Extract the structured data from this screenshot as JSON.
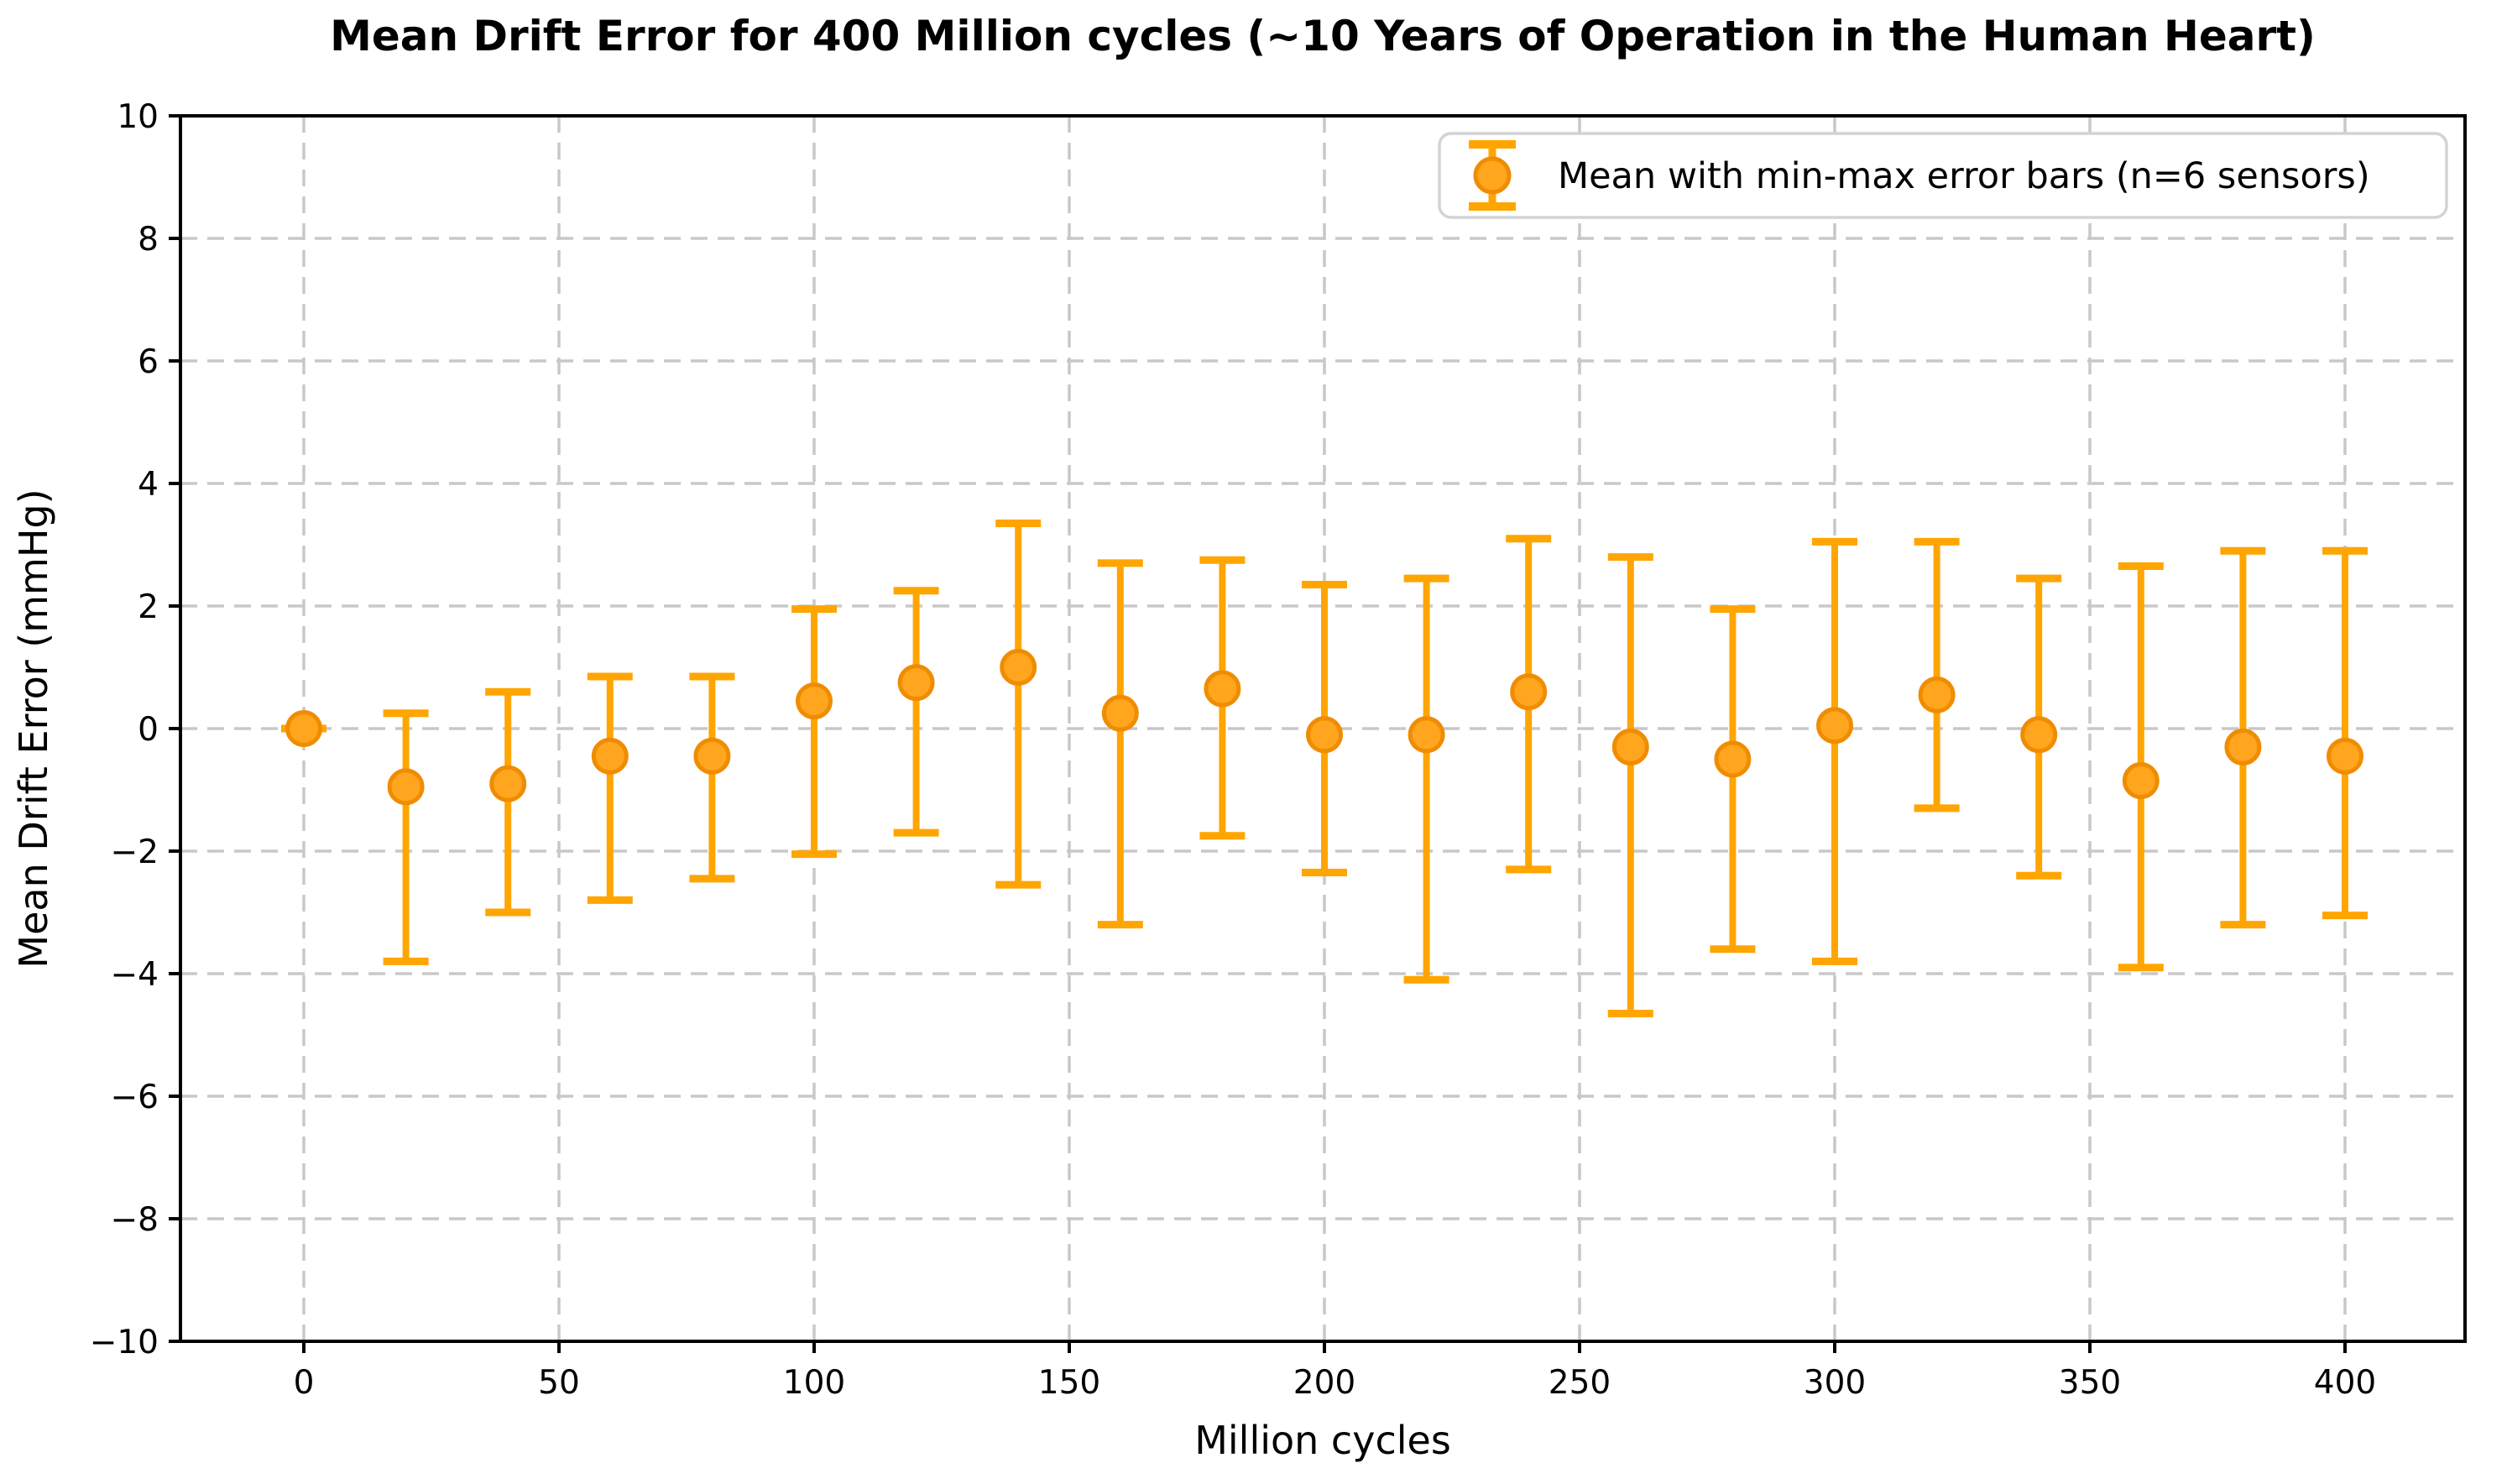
{
  "title": "Mean Drift Error for 400 Million cycles (~10 Years of Operation in the Human Heart)",
  "legend": {
    "label": "Mean with min-max error bars (n=6 sensors)",
    "position": "upper right"
  },
  "colors": {
    "errorbar_line": "#FFA500",
    "marker_fill": "#FFA51E",
    "marker_edge": "#F08C00",
    "grid": "#C8C8C8",
    "spine": "#000000",
    "text": "#000000",
    "legend_border": "#D3D3D3",
    "background": "#FFFFFF"
  },
  "chart_data": {
    "type": "scatter",
    "title": "Mean Drift Error for 400 Million cycles (~10 Years of Operation in the Human Heart)",
    "xlabel": "Million cycles",
    "ylabel": "Mean Drift Error (mmHg)",
    "legend_label": "Mean with min-max error bars (n=6 sensors)",
    "legend_position": "upper right",
    "grid": true,
    "xlim": [
      -24.2,
      423.6
    ],
    "ylim": [
      -10,
      10
    ],
    "x_tick_values": [
      0,
      50,
      100,
      150,
      200,
      250,
      300,
      350,
      400
    ],
    "x_tick_labels": [
      "0",
      "50",
      "100",
      "150",
      "200",
      "250",
      "300",
      "350",
      "400"
    ],
    "y_tick_values": [
      10,
      8,
      6,
      4,
      2,
      0,
      -2,
      -4,
      -6,
      -8,
      -10
    ],
    "y_tick_labels": [
      "10",
      "8",
      "6",
      "4",
      "2",
      "0",
      "−2",
      "−4",
      "−6",
      "−8",
      "−10"
    ],
    "x": [
      0,
      20,
      40,
      60,
      80,
      100,
      120,
      140,
      160,
      180,
      200,
      220,
      240,
      260,
      280,
      300,
      320,
      340,
      360,
      380,
      400
    ],
    "series": [
      {
        "name": "mean",
        "values": [
          0.0,
          -0.95,
          -0.9,
          -0.45,
          -0.45,
          0.45,
          0.75,
          1.0,
          0.25,
          0.65,
          -0.1,
          -0.1,
          0.6,
          -0.3,
          -0.5,
          0.05,
          0.55,
          -0.1,
          -0.85,
          -0.3,
          -0.45
        ]
      },
      {
        "name": "min",
        "values": [
          0.0,
          -3.8,
          -3.0,
          -2.8,
          -2.45,
          -2.05,
          -1.7,
          -2.55,
          -3.2,
          -1.75,
          -2.35,
          -4.1,
          -2.3,
          -4.65,
          -3.6,
          -3.8,
          -1.3,
          -2.4,
          -3.9,
          -3.2,
          -3.05
        ]
      },
      {
        "name": "max",
        "values": [
          0.0,
          0.25,
          0.6,
          0.85,
          0.85,
          1.95,
          2.25,
          3.35,
          2.7,
          2.75,
          2.35,
          2.45,
          3.1,
          2.8,
          1.95,
          3.05,
          3.05,
          2.45,
          2.65,
          2.9,
          2.9
        ]
      }
    ]
  }
}
